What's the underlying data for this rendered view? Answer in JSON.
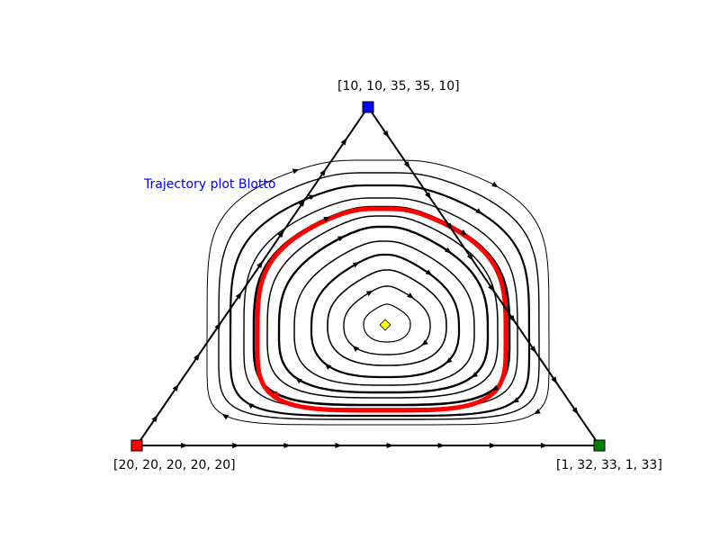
{
  "title": "Trajectory plot Blotto",
  "vertices": {
    "top": "[10, 10, 35, 35, 10]",
    "left": "[20, 20, 20, 20, 20]",
    "right": "[1, 32, 33, 1, 33]"
  },
  "colors": {
    "title": "#0000ff",
    "top_vertex": "#0000ff",
    "left_vertex": "#ff0000",
    "right_vertex": "#008000",
    "highlight_trajectory": "#ff0000",
    "rest_point": "#ffff00",
    "lines": "#000000"
  },
  "chart_data": {
    "type": "ternary-trajectory",
    "rest_point": {
      "marker": "diamond",
      "color": "yellow"
    },
    "trajectories": "closed orbits cycling around an interior rest point; one highlighted orbit in red"
  }
}
